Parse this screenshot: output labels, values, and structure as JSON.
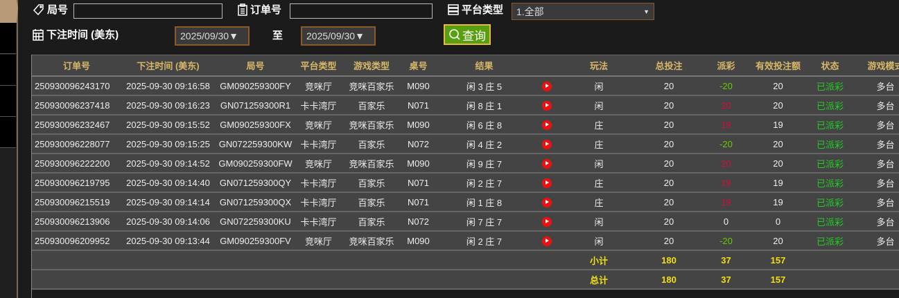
{
  "filters": {
    "round_label": "局号",
    "round_value": "",
    "order_label": "订单号",
    "order_value": "",
    "platform_label": "平台类型",
    "platform_value": "1.全部",
    "time_label": "下注时间 (美东)",
    "date_from": "2025/09/30▼",
    "to_label": "至",
    "date_to": "2025/09/30▼",
    "query_label": "查询"
  },
  "colors": {
    "accent_green": "#58a010",
    "header_text": "#d8b868",
    "status_green": "#22cc22",
    "positive_red": "#d0103a",
    "negative_green": "#66cc00",
    "total_yellow": "#f0e010"
  },
  "table": {
    "headers": [
      "订单号",
      "下注时间 (美东)",
      "局号",
      "平台类型",
      "游戏类型",
      "桌号",
      "结果",
      "",
      "玩法",
      "总投注",
      "派彩",
      "有效投注额",
      "状态",
      "游戏模式"
    ],
    "rows": [
      {
        "order": "250930096243170",
        "time": "2025-09-30 09:16:58",
        "round": "GM090259300FY",
        "platform": "竞咪厅",
        "game": "竞咪百家乐",
        "table": "M090",
        "result": "闲 3 庄 5",
        "play": "闲",
        "bet": "20",
        "payout": "-20",
        "valid": "20",
        "status": "已派彩",
        "mode": "多台"
      },
      {
        "order": "250930096237418",
        "time": "2025-09-30 09:16:23",
        "round": "GN071259300R1",
        "platform": "卡卡湾厅",
        "game": "百家乐",
        "table": "N071",
        "result": "闲 8 庄 1",
        "play": "闲",
        "bet": "20",
        "payout": "20",
        "valid": "20",
        "status": "已派彩",
        "mode": "多台"
      },
      {
        "order": "250930096232467",
        "time": "2025-09-30 09:15:52",
        "round": "GM090259300FX",
        "platform": "竞咪厅",
        "game": "竞咪百家乐",
        "table": "M090",
        "result": "闲 6 庄 8",
        "play": "庄",
        "bet": "20",
        "payout": "19",
        "valid": "19",
        "status": "已派彩",
        "mode": "多台"
      },
      {
        "order": "250930096228077",
        "time": "2025-09-30 09:15:25",
        "round": "GN072259300KW",
        "platform": "卡卡湾厅",
        "game": "百家乐",
        "table": "N072",
        "result": "闲 4 庄 2",
        "play": "庄",
        "bet": "20",
        "payout": "-20",
        "valid": "20",
        "status": "已派彩",
        "mode": "多台"
      },
      {
        "order": "250930096222200",
        "time": "2025-09-30 09:14:52",
        "round": "GM090259300FW",
        "platform": "竞咪厅",
        "game": "竞咪百家乐",
        "table": "M090",
        "result": "闲 9 庄 7",
        "play": "闲",
        "bet": "20",
        "payout": "20",
        "valid": "20",
        "status": "已派彩",
        "mode": "多台"
      },
      {
        "order": "250930096219795",
        "time": "2025-09-30 09:14:40",
        "round": "GN071259300QY",
        "platform": "卡卡湾厅",
        "game": "百家乐",
        "table": "N071",
        "result": "闲 2 庄 7",
        "play": "庄",
        "bet": "20",
        "payout": "19",
        "valid": "19",
        "status": "已派彩",
        "mode": "多台"
      },
      {
        "order": "250930096215519",
        "time": "2025-09-30 09:14:14",
        "round": "GN071259300QX",
        "platform": "卡卡湾厅",
        "game": "百家乐",
        "table": "N071",
        "result": "闲 1 庄 8",
        "play": "庄",
        "bet": "20",
        "payout": "19",
        "valid": "19",
        "status": "已派彩",
        "mode": "多台"
      },
      {
        "order": "250930096213906",
        "time": "2025-09-30 09:14:06",
        "round": "GN072259300KU",
        "platform": "卡卡湾厅",
        "game": "百家乐",
        "table": "N072",
        "result": "闲 7 庄 7",
        "play": "闲",
        "bet": "20",
        "payout": "0",
        "valid": "0",
        "status": "已派彩",
        "mode": "多台"
      },
      {
        "order": "250930096209952",
        "time": "2025-09-30 09:13:44",
        "round": "GM090259300FV",
        "platform": "竞咪厅",
        "game": "竞咪百家乐",
        "table": "M090",
        "result": "闲 2 庄 7",
        "play": "闲",
        "bet": "20",
        "payout": "-20",
        "valid": "20",
        "status": "已派彩",
        "mode": "多台"
      }
    ],
    "subtotal": {
      "label": "小计",
      "bet": "180",
      "payout": "37",
      "valid": "157"
    },
    "total": {
      "label": "总计",
      "bet": "180",
      "payout": "37",
      "valid": "157"
    }
  }
}
